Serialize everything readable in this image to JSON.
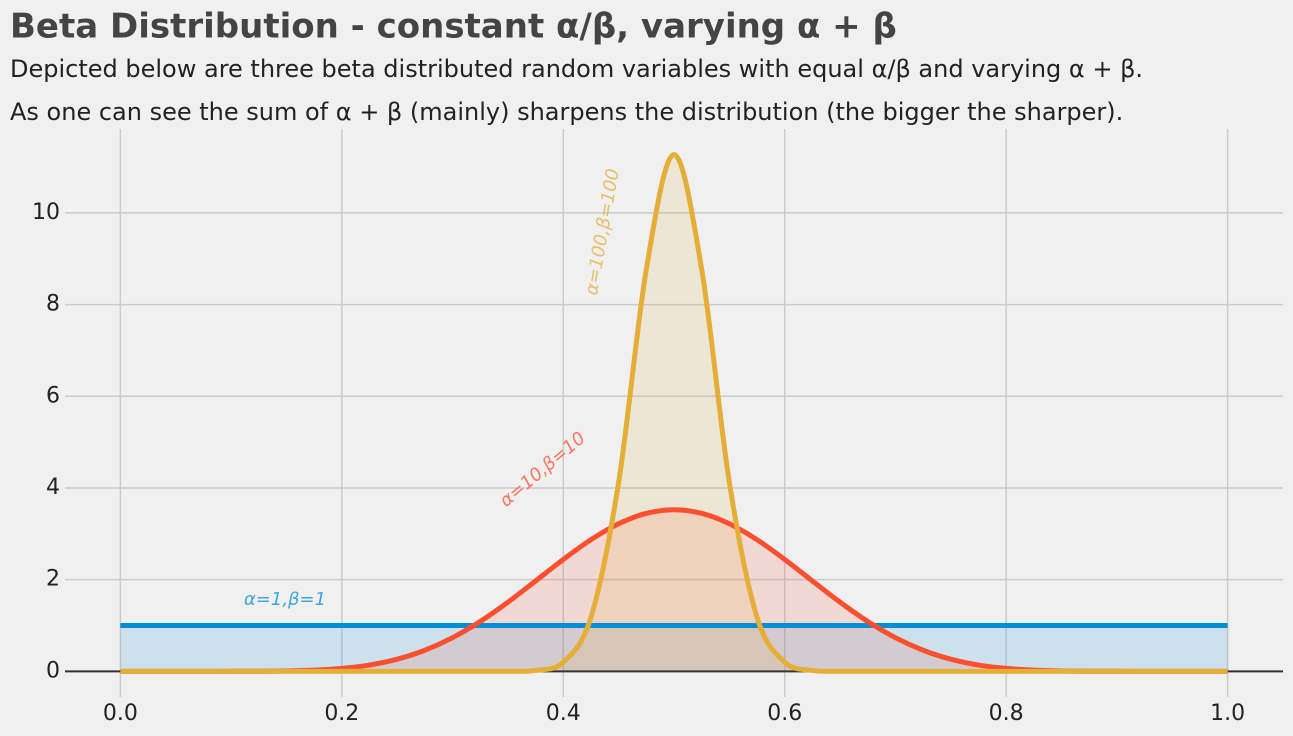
{
  "chart_data": {
    "type": "line",
    "title": "Beta Distribution - constant α/β, varying α + β",
    "subtitle": [
      "Depicted below are three beta distributed random variables with equal α/β and varying α + β.",
      "As one can see the sum of α + β (mainly) sharpens the distribution (the bigger the sharper)."
    ],
    "x": [
      0,
      0.025,
      0.05,
      0.075,
      0.1,
      0.125,
      0.15,
      0.175,
      0.2,
      0.225,
      0.25,
      0.275,
      0.3,
      0.325,
      0.35,
      0.375,
      0.4,
      0.425,
      0.45,
      0.475,
      0.5,
      0.525,
      0.55,
      0.575,
      0.6,
      0.625,
      0.65,
      0.675,
      0.7,
      0.725,
      0.75,
      0.775,
      0.8,
      0.825,
      0.85,
      0.875,
      0.9,
      0.925,
      0.95,
      0.975,
      1
    ],
    "series": [
      {
        "name": "α=1,β=1",
        "color": "#008fd5",
        "values": [
          1,
          1,
          1,
          1,
          1,
          1,
          1,
          1,
          1,
          1,
          1,
          1,
          1,
          1,
          1,
          1,
          1,
          1,
          1,
          1,
          1,
          1,
          1,
          1,
          1,
          1,
          1,
          1,
          1,
          1,
          1,
          1,
          1,
          1,
          1,
          1,
          1,
          1,
          1,
          1,
          1
        ]
      },
      {
        "name": "α=10,β=10",
        "color": "#fc4f30",
        "values": [
          0,
          0,
          0,
          0,
          0.0004,
          0.002,
          0.008,
          0.025,
          0.064,
          0.137,
          0.265,
          0.46,
          0.734,
          1.087,
          1.508,
          1.971,
          2.44,
          2.871,
          3.219,
          3.446,
          3.524,
          3.446,
          3.219,
          2.871,
          2.44,
          1.971,
          1.508,
          1.087,
          0.734,
          0.46,
          0.265,
          0.137,
          0.064,
          0.025,
          0.008,
          0.002,
          0.0004,
          0,
          0,
          0,
          0
        ]
      },
      {
        "name": "α=100,β=100",
        "color": "#e5ae38",
        "values": [
          0,
          0,
          0,
          0,
          0,
          0,
          0,
          0,
          0,
          0,
          0,
          0,
          0,
          0,
          0,
          0.02,
          0.2,
          1.18,
          4.12,
          8.77,
          11.27,
          8.77,
          4.12,
          1.18,
          0.2,
          0.02,
          0,
          0,
          0,
          0,
          0,
          0,
          0,
          0,
          0,
          0,
          0,
          0,
          0,
          0,
          0
        ]
      }
    ],
    "xlim": [
      -0.05,
      1.05
    ],
    "ylim": [
      -0.56,
      11.83
    ],
    "xticks": [
      {
        "value": 0,
        "label": "0.0"
      },
      0.2,
      0.4,
      0.6,
      0.8,
      {
        "value": 1,
        "label": "1.0"
      }
    ],
    "yticks": [
      0,
      2,
      4,
      6,
      8,
      10
    ],
    "grid": true,
    "fill_opacity": 0.15
  }
}
